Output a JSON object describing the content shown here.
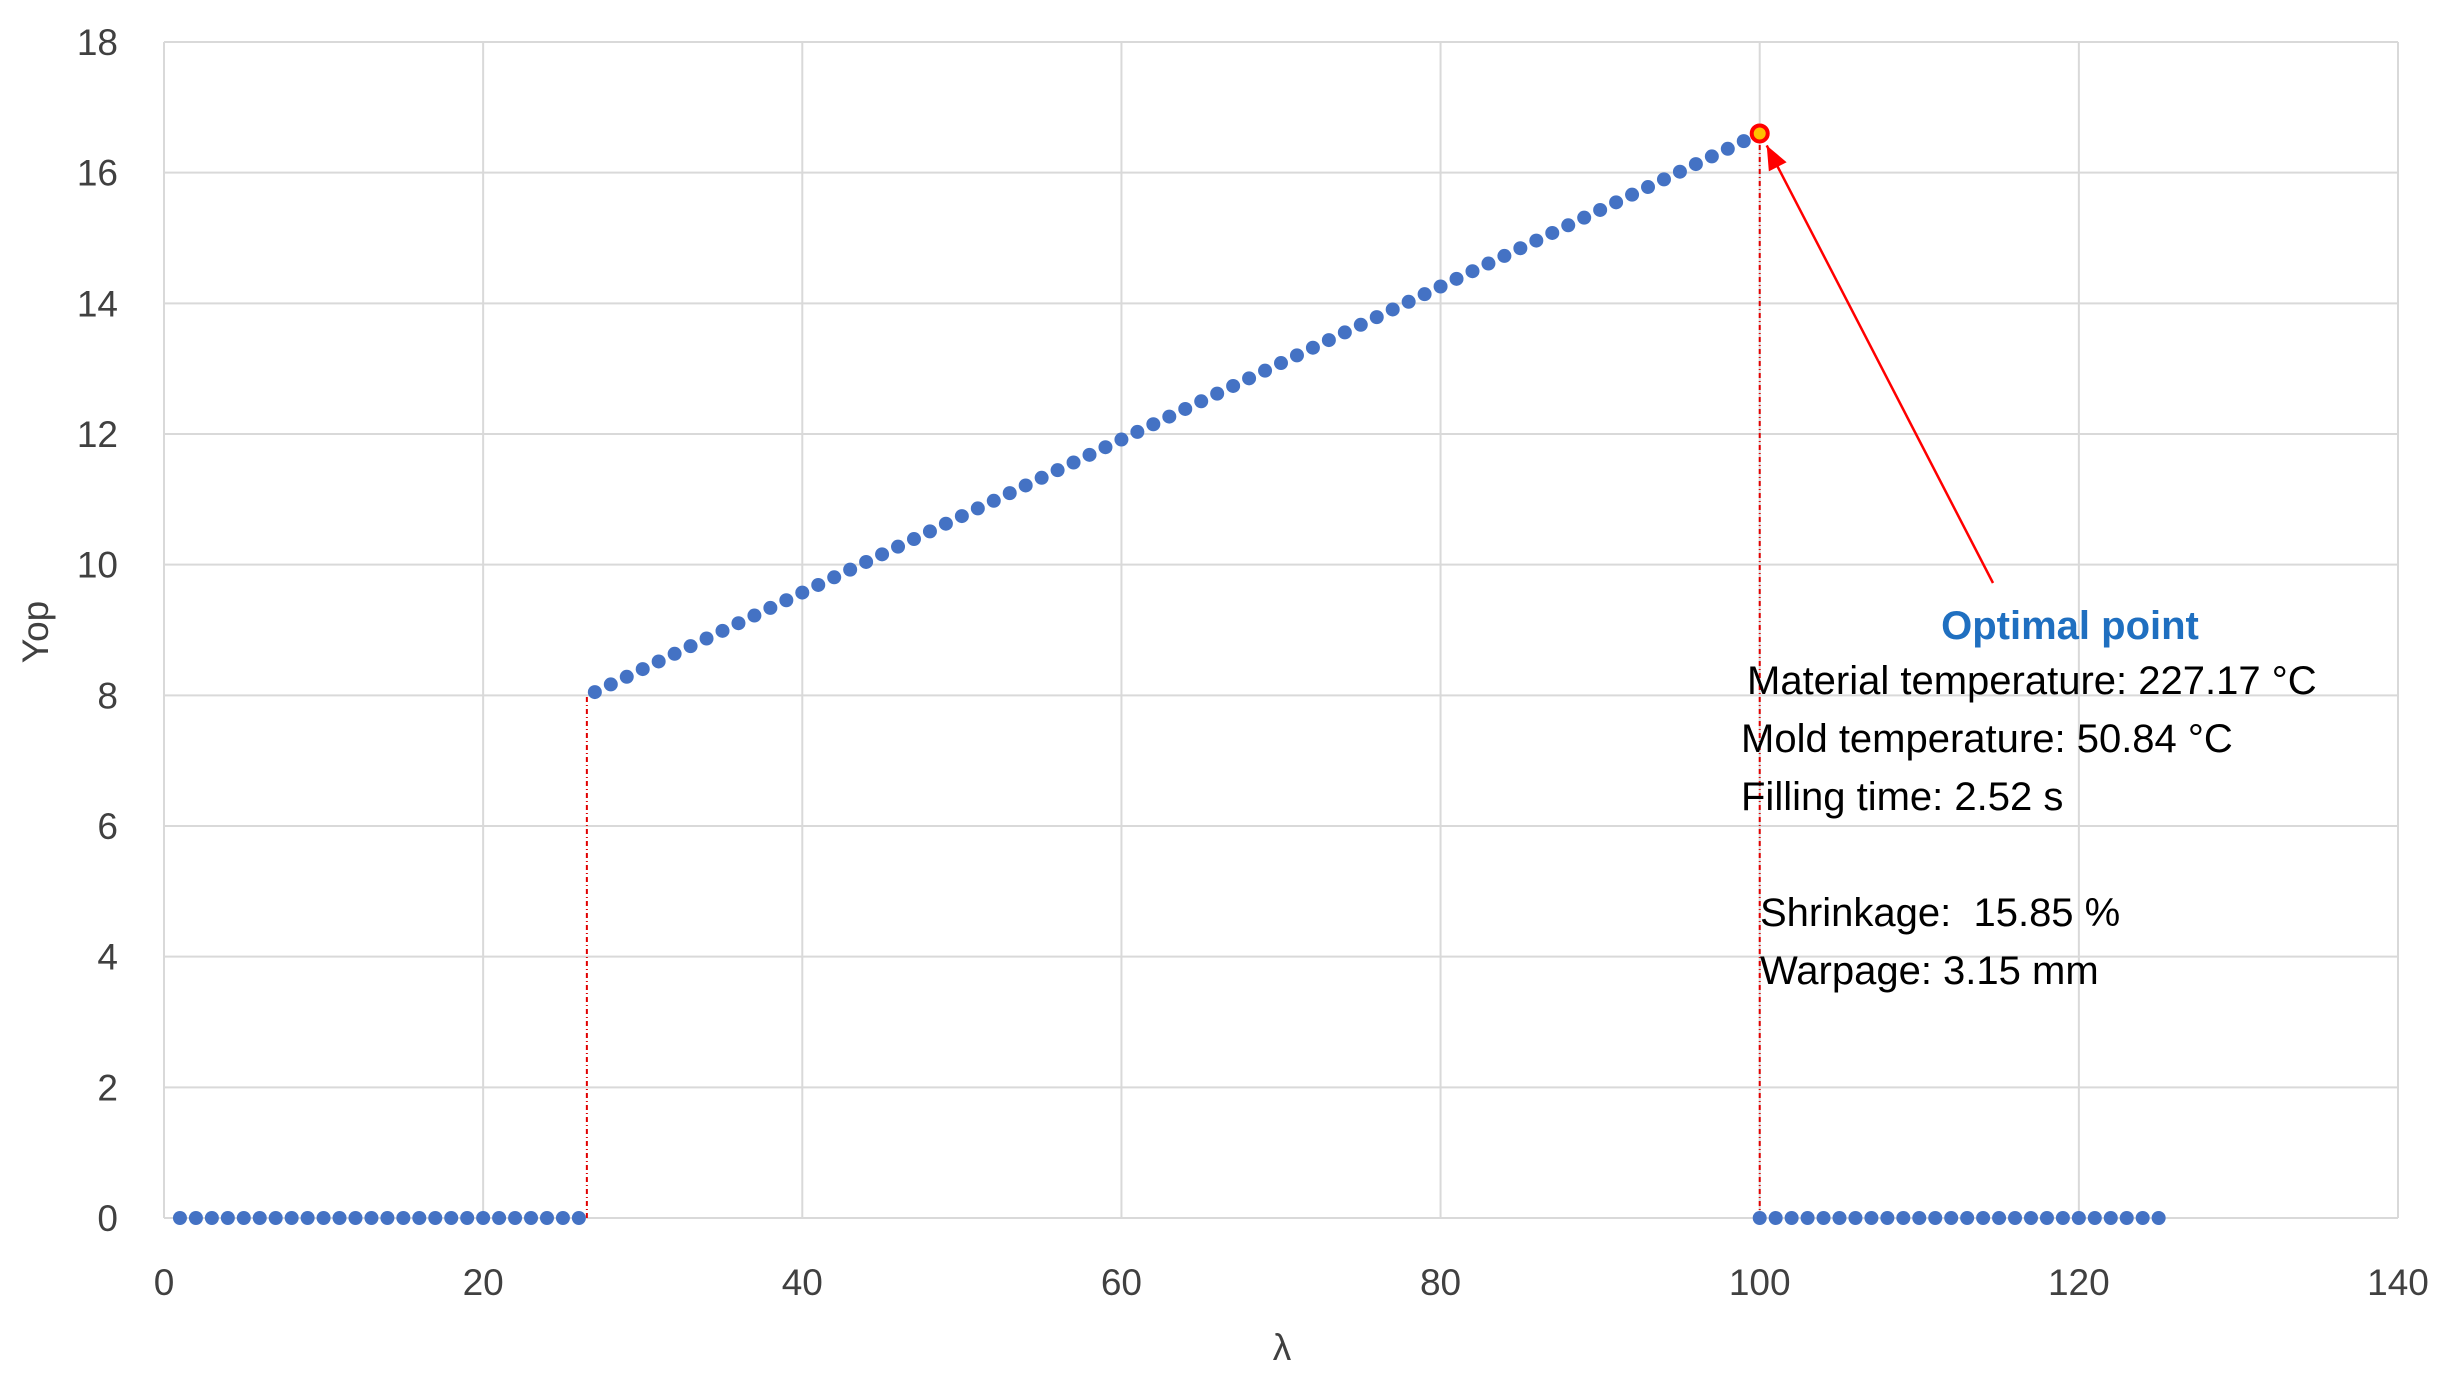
{
  "chart_data": {
    "type": "scatter",
    "xlabel": "λ",
    "ylabel": "Yop",
    "xlim": [
      0,
      140
    ],
    "ylim": [
      0,
      18
    ],
    "x_ticks": [
      "0",
      "20",
      "40",
      "60",
      "80",
      "100",
      "120",
      "140"
    ],
    "y_ticks": [
      "0",
      "2",
      "4",
      "6",
      "8",
      "10",
      "12",
      "14",
      "16",
      "18"
    ],
    "grid": true,
    "legend": "none",
    "colors": {
      "series": "#4472c4",
      "highlight": "#ff0000",
      "highlight_fill": "#ffc000",
      "annotation_title": "#1f6fc0"
    },
    "series": [
      {
        "segments": [
          {
            "x_start": 1,
            "x_end": 26,
            "step": 1,
            "y_start": 0,
            "y_end": 0
          },
          {
            "x_start": 27,
            "x_end": 100,
            "step": 1,
            "y_start": 8.05,
            "y_end": 16.6
          },
          {
            "x_start": 100,
            "x_end": 125,
            "step": 1,
            "y_start": 0,
            "y_end": 0
          }
        ]
      }
    ],
    "reference_lines": [
      {
        "x": 26.5,
        "y_from": 0,
        "y_to": 8
      },
      {
        "x": 100,
        "y_from": 0,
        "y_to": 16.6
      }
    ],
    "optimal_point": {
      "x": 100,
      "y": 16.6
    },
    "annotation": {
      "title": "Optimal point",
      "lines": [
        "Material temperature: 227.17 °C",
        "Mold temperature: 50.84 °C",
        "Filling time: 2.52 s",
        "Shrinkage:  15.85 %",
        "Warpage: 3.15 mm"
      ]
    }
  }
}
